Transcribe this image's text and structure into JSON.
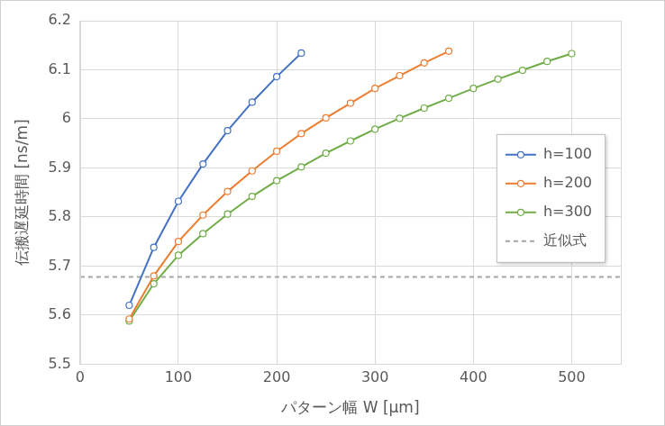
{
  "chart_data": {
    "type": "line",
    "x_label": "パターン幅 W [μm]",
    "y_label": "伝搬遅延時間 [ns/m]",
    "xlim": [
      0,
      550
    ],
    "xticks": [
      0,
      100,
      200,
      300,
      400,
      500
    ],
    "ylim": [
      5.5,
      6.2
    ],
    "yticks": [
      5.5,
      5.6,
      5.7,
      5.8,
      5.9,
      6,
      6.1,
      6.2
    ],
    "grid": true,
    "legend": "right",
    "series": [
      {
        "name": "h=100",
        "color": "#4472c4",
        "marker": "circle",
        "line_style": "solid",
        "x": [
          50,
          75,
          100,
          125,
          150,
          175,
          200,
          225
        ],
        "values": [
          5.62,
          5.738,
          5.832,
          5.908,
          5.976,
          6.034,
          6.086,
          6.134
        ]
      },
      {
        "name": "h=200",
        "color": "#ed7d31",
        "marker": "circle",
        "line_style": "solid",
        "x": [
          50,
          75,
          100,
          125,
          150,
          175,
          200,
          225,
          250,
          275,
          300,
          325,
          350,
          375
        ],
        "values": [
          5.592,
          5.68,
          5.75,
          5.804,
          5.852,
          5.894,
          5.934,
          5.97,
          6.002,
          6.032,
          6.062,
          6.088,
          6.114,
          6.138
        ]
      },
      {
        "name": "h=300",
        "color": "#70ad47",
        "marker": "circle",
        "line_style": "solid",
        "x": [
          50,
          75,
          100,
          125,
          150,
          175,
          200,
          225,
          250,
          275,
          300,
          325,
          350,
          375,
          400,
          425,
          450,
          475,
          500
        ],
        "values": [
          5.588,
          5.664,
          5.722,
          5.766,
          5.806,
          5.842,
          5.874,
          5.902,
          5.93,
          5.955,
          5.979,
          6.001,
          6.022,
          6.042,
          6.062,
          6.081,
          6.099,
          6.117,
          6.133
        ]
      },
      {
        "name": "近似式",
        "color": "#a5a5a5",
        "marker": "none",
        "line_style": "dashed",
        "x": [
          0,
          550
        ],
        "values": [
          5.678,
          5.678
        ]
      }
    ]
  }
}
